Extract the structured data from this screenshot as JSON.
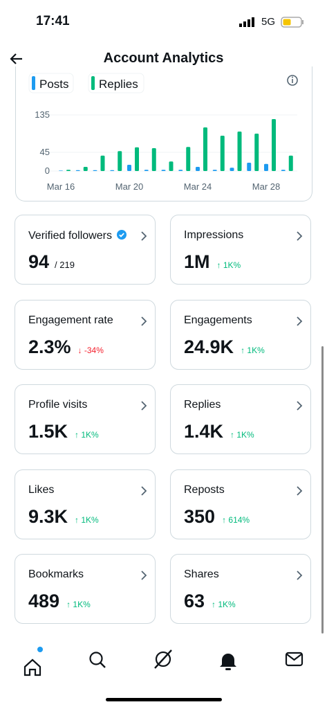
{
  "status_bar": {
    "time": "17:41",
    "network": "5G"
  },
  "header": {
    "title": "Account Analytics"
  },
  "chart_data": {
    "type": "bar",
    "categories": [
      "Mar 16",
      null,
      null,
      null,
      "Mar 20",
      null,
      null,
      null,
      "Mar 24",
      null,
      null,
      null,
      "Mar 28",
      null
    ],
    "series": [
      {
        "name": "Posts",
        "color": "#1d9bf0",
        "values": [
          1,
          2,
          2,
          2,
          15,
          3,
          3,
          3,
          10,
          3,
          8,
          20,
          17,
          3
        ]
      },
      {
        "name": "Replies",
        "color": "#00ba7c",
        "values": [
          3,
          10,
          37,
          48,
          57,
          55,
          23,
          58,
          105,
          85,
          95,
          90,
          125,
          37
        ]
      }
    ],
    "ylim": [
      0,
      135
    ],
    "yticks": [
      0,
      45,
      135
    ],
    "grid": true
  },
  "cards": [
    {
      "label": "Verified followers",
      "verified": true,
      "value": "94",
      "sub": "/ 219"
    },
    {
      "label": "Impressions",
      "value": "1M",
      "change": "↑ 1K%",
      "direction": "up"
    },
    {
      "label": "Engagement rate",
      "value": "2.3%",
      "change": "↓ -34%",
      "direction": "down"
    },
    {
      "label": "Engagements",
      "value": "24.9K",
      "change": "↑ 1K%",
      "direction": "up"
    },
    {
      "label": "Profile visits",
      "value": "1.5K",
      "change": "↑ 1K%",
      "direction": "up"
    },
    {
      "label": "Replies",
      "value": "1.4K",
      "change": "↑ 1K%",
      "direction": "up"
    },
    {
      "label": "Likes",
      "value": "9.3K",
      "change": "↑ 1K%",
      "direction": "up"
    },
    {
      "label": "Reposts",
      "value": "350",
      "change": "↑ 614%",
      "direction": "up"
    },
    {
      "label": "Bookmarks",
      "value": "489",
      "change": "↑ 1K%",
      "direction": "up"
    },
    {
      "label": "Shares",
      "value": "63",
      "change": "↑ 1K%",
      "direction": "up"
    }
  ]
}
